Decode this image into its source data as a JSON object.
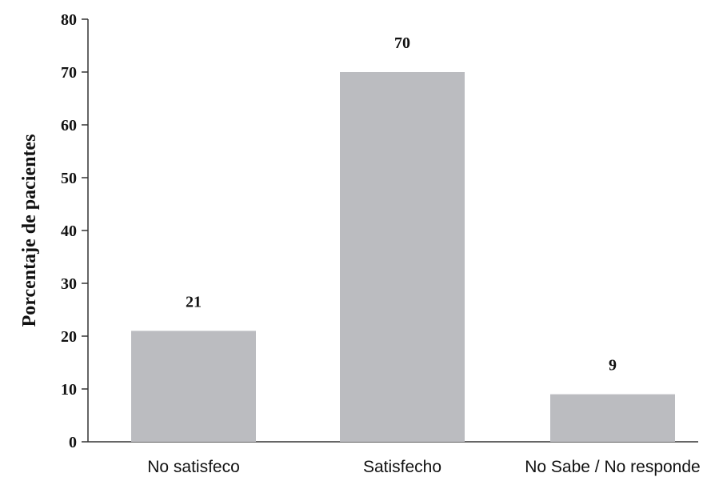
{
  "chart_data": {
    "type": "bar",
    "categories": [
      "No satisfeco",
      "Satisfecho",
      "No Sabe / No responde"
    ],
    "values": [
      21,
      70,
      9
    ],
    "data_labels": [
      "21",
      "70",
      "9"
    ],
    "title": "",
    "xlabel": "",
    "ylabel": "Porcentaje de pacientes",
    "ylim": [
      0,
      80
    ],
    "yticks": [
      0,
      10,
      20,
      30,
      40,
      50,
      60,
      70,
      80
    ],
    "grid": false,
    "legend": "none",
    "bar_color": "#bbbcc0",
    "axis_color": "#333333"
  }
}
